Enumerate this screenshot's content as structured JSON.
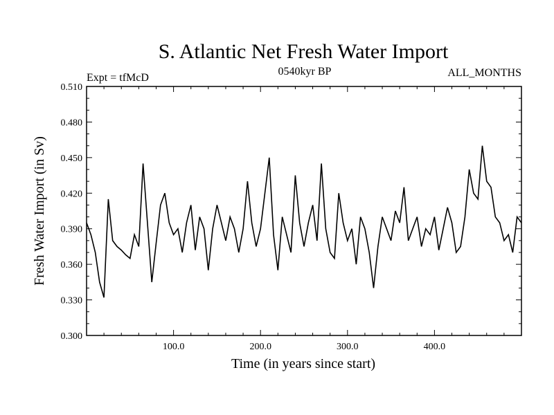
{
  "chart_data": {
    "type": "line",
    "title": "S. Atlantic Net Fresh Water Import",
    "subtitle_left": "Expt = tfMcD",
    "subtitle_center": "0540kyr BP",
    "subtitle_right": "ALL_MONTHS",
    "xlabel": "Time (in years since start)",
    "ylabel": "Fresh Water Import (in Sv)",
    "xlim": [
      0,
      500
    ],
    "ylim": [
      0.3,
      0.51
    ],
    "xticks": [
      100,
      200,
      300,
      400
    ],
    "xtick_labels": [
      "100.0",
      "200.0",
      "300.0",
      "400.0"
    ],
    "yticks": [
      0.3,
      0.33,
      0.36,
      0.39,
      0.42,
      0.45,
      0.48,
      0.51
    ],
    "ytick_labels": [
      "0.300",
      "0.330",
      "0.360",
      "0.390",
      "0.420",
      "0.450",
      "0.480",
      "0.510"
    ],
    "grid": false,
    "line_color": "#000000",
    "series": [
      {
        "x": [
          0,
          5,
          10,
          15,
          20,
          25,
          30,
          35,
          40,
          45,
          50,
          55,
          60,
          65,
          70,
          75,
          80,
          85,
          90,
          95,
          100,
          105,
          110,
          115,
          120,
          125,
          130,
          135,
          140,
          145,
          150,
          155,
          160,
          165,
          170,
          175,
          180,
          185,
          190,
          195,
          200,
          205,
          210,
          215,
          220,
          225,
          230,
          235,
          240,
          245,
          250,
          255,
          260,
          265,
          270,
          275,
          280,
          285,
          290,
          295,
          300,
          305,
          310,
          315,
          320,
          325,
          330,
          335,
          340,
          345,
          350,
          355,
          360,
          365,
          370,
          375,
          380,
          385,
          390,
          395,
          400,
          405,
          410,
          415,
          420,
          425,
          430,
          435,
          440,
          445,
          450,
          455,
          460,
          465,
          470,
          475,
          480,
          485,
          490,
          495,
          500
        ],
        "values": [
          0.395,
          0.385,
          0.37,
          0.345,
          0.332,
          0.415,
          0.38,
          0.375,
          0.372,
          0.368,
          0.365,
          0.385,
          0.375,
          0.445,
          0.395,
          0.345,
          0.378,
          0.41,
          0.42,
          0.395,
          0.385,
          0.39,
          0.37,
          0.395,
          0.41,
          0.372,
          0.4,
          0.39,
          0.355,
          0.39,
          0.41,
          0.395,
          0.38,
          0.4,
          0.39,
          0.37,
          0.39,
          0.43,
          0.395,
          0.375,
          0.39,
          0.42,
          0.45,
          0.385,
          0.355,
          0.4,
          0.385,
          0.37,
          0.435,
          0.395,
          0.375,
          0.395,
          0.41,
          0.38,
          0.445,
          0.39,
          0.37,
          0.365,
          0.42,
          0.395,
          0.38,
          0.39,
          0.36,
          0.4,
          0.39,
          0.37,
          0.34,
          0.375,
          0.4,
          0.39,
          0.38,
          0.405,
          0.395,
          0.425,
          0.38,
          0.39,
          0.4,
          0.375,
          0.39,
          0.385,
          0.4,
          0.372,
          0.39,
          0.408,
          0.395,
          0.37,
          0.375,
          0.4,
          0.44,
          0.42,
          0.415,
          0.46,
          0.43,
          0.425,
          0.4,
          0.395,
          0.38,
          0.385,
          0.37,
          0.4,
          0.395
        ]
      }
    ]
  }
}
